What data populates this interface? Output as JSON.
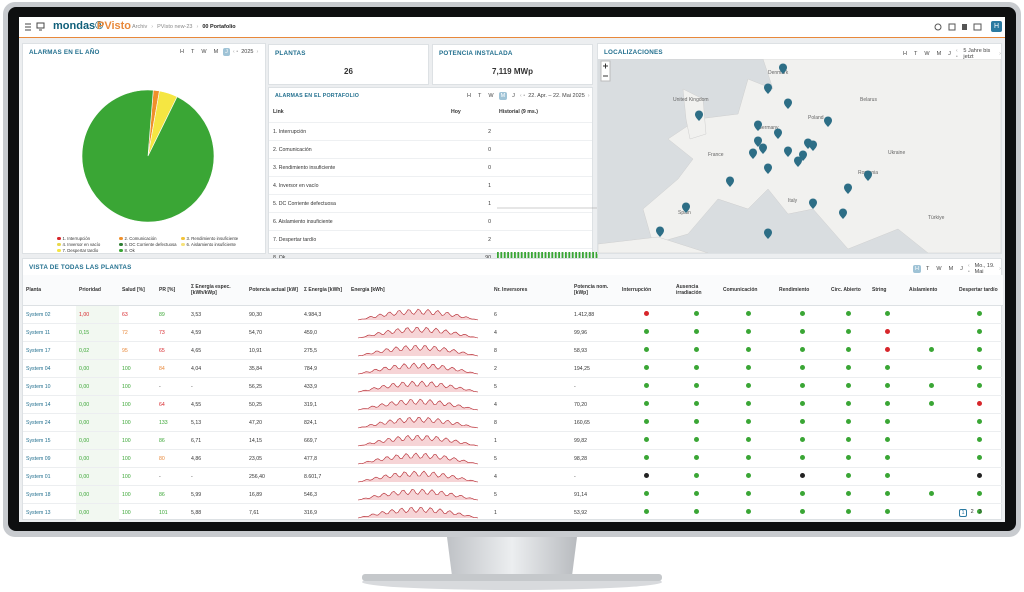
{
  "header": {
    "brand": "mondas®",
    "product": "PVisto",
    "breadcrumb": [
      "Archiv",
      "PVisto new-23",
      "00 Portafolio"
    ],
    "user": "H"
  },
  "time_buttons": [
    "H",
    "T",
    "W",
    "M",
    "J"
  ],
  "chart_data": {
    "type": "pie",
    "title": "ALARMAS EN EL AÑO",
    "period": "2025",
    "categories": [
      "1. Interrupción",
      "2. Comunicación",
      "3. Rendimiento insuficiente",
      "4. Inversor en vacío",
      "5. DC Corriente defectuosa",
      "6. Aislamiento insuficiente",
      "7. Despertar tardío",
      "8. Ok"
    ],
    "values": [
      0,
      1.5,
      0,
      0,
      0,
      0,
      4.5,
      94
    ],
    "colors": [
      "#d7262b",
      "#f0902a",
      "#f3c43a",
      "#e8d84a",
      "#2e7d32",
      "#f6e27a",
      "#f5e642",
      "#3aa635"
    ]
  },
  "kpis": [
    {
      "title": "PLANTAS",
      "value": "26"
    },
    {
      "title": "POTENCIA INSTALADA",
      "value": "7,119 MWp"
    }
  ],
  "portfolio_alarms": {
    "title": "ALARMAS EN EL PORTAFOLIO",
    "period": "22. Apr. – 22. Mai 2025",
    "columns": [
      "Link",
      "Hoy",
      "Historial (9 ms.)"
    ],
    "rows": [
      {
        "name": "1. Interrupción",
        "today": 2
      },
      {
        "name": "2. Comunicación",
        "today": 0
      },
      {
        "name": "3. Rendimiento insuficiente",
        "today": 0
      },
      {
        "name": "4. Inversor en vacío",
        "today": 1
      },
      {
        "name": "5. DC Corriente defectuosa",
        "today": 1
      },
      {
        "name": "6. Aislamiento insuficiente",
        "today": 0
      },
      {
        "name": "7. Despertar tardío",
        "today": 2
      },
      {
        "name": "8. Ok",
        "today": 90
      }
    ]
  },
  "map": {
    "title": "LOCALIZACIONES",
    "period": "5 Jahre bis jetzt",
    "labels": [
      "Denmark",
      "United Kingdom",
      "Belarus",
      "Germany",
      "Poland",
      "France",
      "Ukraine",
      "Italy",
      "Spain",
      "Romania",
      "Türkiye"
    ]
  },
  "plants": {
    "title": "VISTA DE TODAS LAS PLANTAS",
    "period": "Mo., 19. Mai",
    "columns": [
      "Planta",
      "Prioridad",
      "Salud [%]",
      "PR [%]",
      "Σ Energía espec. [kWh/kWp]",
      "Potencia actual [kW]",
      "Σ Energía [kWh]",
      "Energía [kWh]",
      "Nr. Inversores",
      "Potencia nom. [kWp]",
      "Interrupción",
      "Ausencia irradiación",
      "Comunicación",
      "Rendimiento",
      "Circ. Abierto",
      "String",
      "Aislamiento",
      "Despertar tardío"
    ],
    "rows": [
      {
        "cells": [
          "System 02",
          "1,00",
          "63",
          "89",
          "3,53",
          "90,30",
          "4.984,3",
          "6",
          "1.412,88"
        ],
        "status": [
          "r",
          "g",
          "g",
          "g",
          "g",
          "g",
          null,
          "g"
        ]
      },
      {
        "cells": [
          "System 11",
          "0,15",
          "72",
          "73",
          "4,59",
          "54,70",
          "459,0",
          "4",
          "99,96"
        ],
        "status": [
          "g",
          "g",
          "g",
          "g",
          "g",
          "r",
          null,
          "g"
        ]
      },
      {
        "cells": [
          "System 17",
          "0,02",
          "95",
          "65",
          "4,65",
          "10,91",
          "275,5",
          "8",
          "58,93"
        ],
        "status": [
          "g",
          "g",
          "g",
          "g",
          "g",
          "r",
          "g",
          "g"
        ]
      },
      {
        "cells": [
          "System 04",
          "0,00",
          "100",
          "84",
          "4,04",
          "35,84",
          "784,9",
          "2",
          "194,25"
        ],
        "status": [
          "g",
          "g",
          "g",
          "g",
          "g",
          "g",
          null,
          "g"
        ]
      },
      {
        "cells": [
          "System 10",
          "0,00",
          "100",
          "-",
          "-",
          "56,25",
          "433,9",
          "5",
          "-"
        ],
        "status": [
          "g",
          "g",
          "g",
          "g",
          "g",
          "g",
          "g",
          "g"
        ]
      },
      {
        "cells": [
          "System 14",
          "0,00",
          "100",
          "64",
          "4,55",
          "50,25",
          "319,1",
          "4",
          "70,20"
        ],
        "status": [
          "g",
          "g",
          "g",
          "g",
          "g",
          "g",
          "g",
          "r"
        ]
      },
      {
        "cells": [
          "System 24",
          "0,00",
          "100",
          "133",
          "5,13",
          "47,20",
          "824,1",
          "8",
          "160,65"
        ],
        "status": [
          "g",
          "g",
          "g",
          "g",
          "g",
          "g",
          null,
          "g"
        ]
      },
      {
        "cells": [
          "System 15",
          "0,00",
          "100",
          "86",
          "6,71",
          "14,15",
          "669,7",
          "1",
          "99,82"
        ],
        "status": [
          "g",
          "g",
          "g",
          "g",
          "g",
          "g",
          null,
          "g"
        ]
      },
      {
        "cells": [
          "System 09",
          "0,00",
          "100",
          "80",
          "4,86",
          "23,05",
          "477,8",
          "5",
          "98,28"
        ],
        "status": [
          "g",
          "g",
          "g",
          "g",
          "g",
          "g",
          null,
          "g"
        ]
      },
      {
        "cells": [
          "System 01",
          "0,00",
          "100",
          "-",
          "-",
          "256,40",
          "8.601,7",
          "4",
          "-"
        ],
        "status": [
          "k",
          "g",
          "g",
          "k",
          "g",
          "g",
          null,
          "k"
        ]
      },
      {
        "cells": [
          "System 18",
          "0,00",
          "100",
          "86",
          "5,99",
          "16,89",
          "546,3",
          "5",
          "91,14"
        ],
        "status": [
          "g",
          "g",
          "g",
          "g",
          "g",
          "g",
          "g",
          "g"
        ]
      },
      {
        "cells": [
          "System 13",
          "0,00",
          "100",
          "101",
          "5,88",
          "7,61",
          "316,9",
          "1",
          "53,92"
        ],
        "status": [
          "g",
          "g",
          "g",
          "g",
          "g",
          "g",
          null,
          "g"
        ]
      }
    ],
    "pages": [
      "1",
      "2",
      "3"
    ]
  }
}
